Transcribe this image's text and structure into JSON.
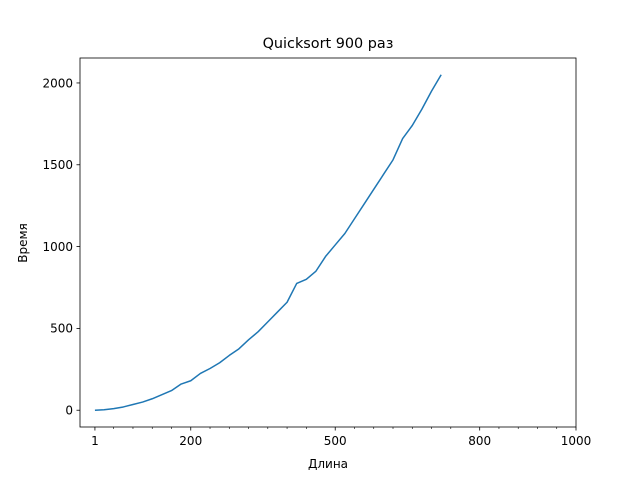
{
  "chart_data": {
    "type": "line",
    "title": "Quicksort 900 раз",
    "xlabel": "Длина",
    "ylabel": "Время",
    "xlim": [
      -30,
      1000
    ],
    "ylim": [
      -102.5,
      2152.5
    ],
    "xticks_major": [
      1,
      200,
      500,
      800,
      1000
    ],
    "xtick_labels": [
      "1",
      "200",
      "500",
      "800",
      "1000"
    ],
    "xticks_minor": [
      40,
      80,
      120,
      160,
      240,
      280,
      320,
      360,
      400,
      440,
      540,
      580,
      620,
      660,
      700,
      740,
      840,
      880,
      920,
      960
    ],
    "yticks": [
      0,
      500,
      1000,
      1500,
      2000
    ],
    "ytick_labels": [
      "0",
      "500",
      "1000",
      "1500",
      "2000"
    ],
    "grid": false,
    "color": "#1f77b4",
    "x": [
      1,
      20,
      40,
      60,
      80,
      100,
      120,
      140,
      160,
      180,
      200,
      220,
      240,
      260,
      280,
      300,
      320,
      340,
      360,
      380,
      400,
      420,
      440,
      460,
      480,
      500,
      520,
      540,
      560,
      580,
      600,
      620,
      640,
      660,
      680,
      700,
      720
    ],
    "y": [
      0,
      3,
      10,
      20,
      35,
      50,
      70,
      95,
      120,
      160,
      180,
      225,
      255,
      290,
      335,
      375,
      430,
      480,
      540,
      600,
      660,
      775,
      800,
      850,
      940,
      1010,
      1080,
      1170,
      1260,
      1350,
      1440,
      1530,
      1660,
      1740,
      1840,
      1950,
      2050
    ]
  }
}
